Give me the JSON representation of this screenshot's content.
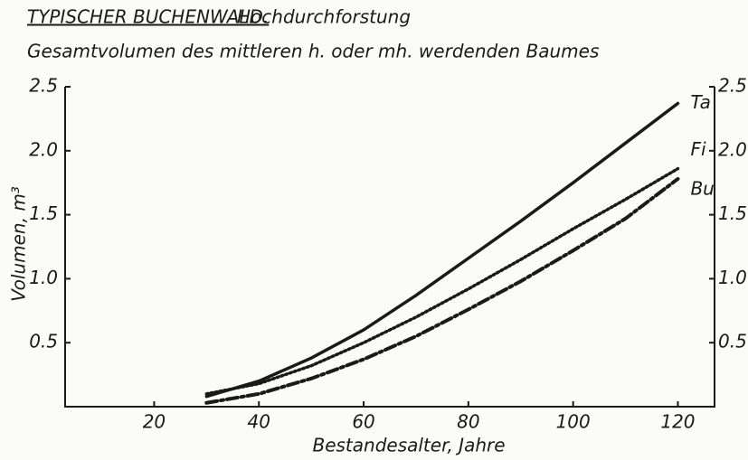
{
  "chart_data": {
    "type": "line",
    "title": "TYPISCHER BUCHENWALD.",
    "title_note": "Hochdurchforstung",
    "subtitle": "Gesamtvolumen des mittleren h. oder mh. werdenden Baumes",
    "xlabel": "Bestandesalter, Jahre",
    "ylabel": "Volumen, m³",
    "x": [
      30,
      40,
      50,
      60,
      70,
      80,
      90,
      100,
      110,
      120
    ],
    "series": [
      {
        "name": "Ta",
        "color": "#1a1a1a",
        "dash": "solid",
        "values": [
          0.08,
          0.2,
          0.38,
          0.6,
          0.87,
          1.16,
          1.45,
          1.75,
          2.06,
          2.37
        ]
      },
      {
        "name": "Fi",
        "color": "#1a1a1a",
        "dash": "dotted",
        "values": [
          0.1,
          0.18,
          0.32,
          0.5,
          0.7,
          0.92,
          1.15,
          1.39,
          1.62,
          1.86
        ]
      },
      {
        "name": "Bu",
        "color": "#1a1a1a",
        "dash": "dashdot",
        "values": [
          0.03,
          0.1,
          0.22,
          0.37,
          0.55,
          0.76,
          0.98,
          1.22,
          1.47,
          1.78
        ]
      }
    ],
    "xlim": [
      3,
      127
    ],
    "xticks": [
      20,
      40,
      60,
      80,
      100,
      120
    ],
    "ylim": [
      0,
      2.5
    ],
    "yticks": [
      0.5,
      {
        "value": 1,
        "label": "1.0"
      },
      1.5,
      {
        "value": 2,
        "label": "2.0"
      },
      2.5
    ],
    "y2lim": [
      0,
      2.5
    ],
    "y2ticks": [
      0.5,
      {
        "value": 1,
        "label": "1.0"
      },
      1.5,
      {
        "value": 2,
        "label": "2.0"
      },
      2.5
    ],
    "grid": false
  }
}
